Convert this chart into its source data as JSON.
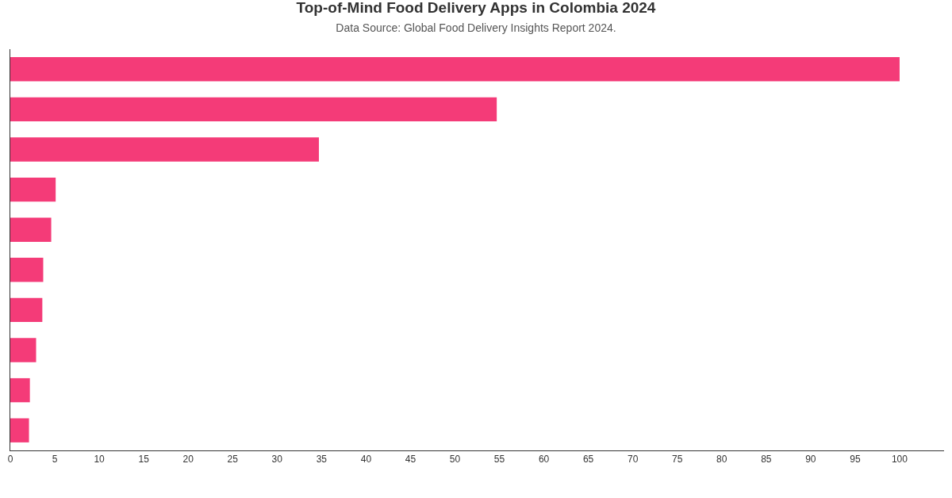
{
  "chart_data": {
    "type": "bar",
    "orientation": "horizontal",
    "title": "Top-of-Mind Food Delivery Apps in Colombia 2024",
    "subtitle": "Data Source: Global Food Delivery Insights Report 2024.",
    "categories": [
      null,
      null,
      null,
      null,
      null,
      null,
      null,
      null,
      null,
      null
    ],
    "values": [
      100,
      54.7,
      34.7,
      5.1,
      4.6,
      3.7,
      3.6,
      2.9,
      2.2,
      2.1
    ],
    "color": "#f43b78",
    "xlim": [
      0,
      105
    ],
    "xticks": [
      0,
      5,
      10,
      15,
      20,
      25,
      30,
      35,
      40,
      45,
      50,
      55,
      60,
      65,
      70,
      75,
      80,
      85,
      90,
      95,
      100
    ],
    "grid": false,
    "tick_labels": "x"
  }
}
